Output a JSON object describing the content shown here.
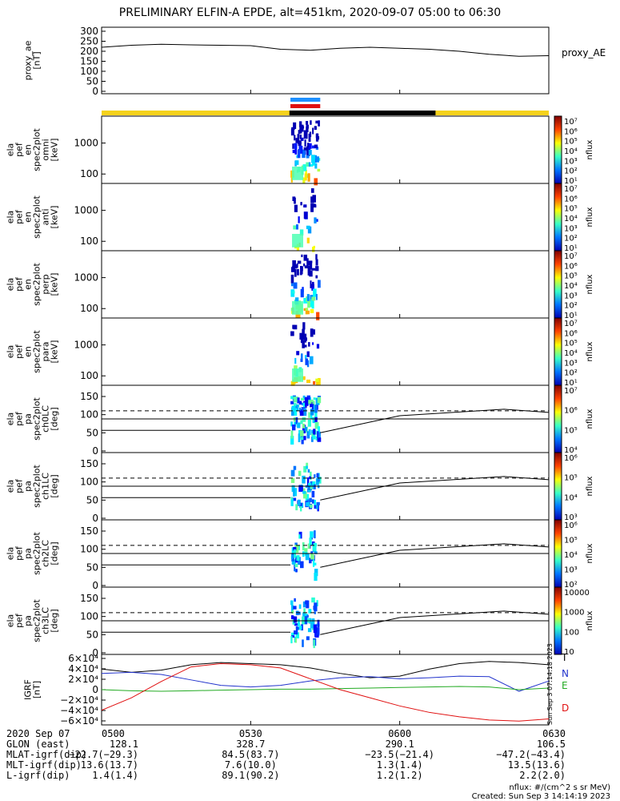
{
  "title": "PRELIMINARY ELFIN-A EPDE, alt=451km, 2020-09-07 05:00 to 06:30",
  "x_ticks": [
    "0500",
    "0530",
    "0600",
    "0630"
  ],
  "panels": [
    {
      "id": "proxy_ae",
      "ylabel": [
        "proxy_ae",
        "[nT]"
      ],
      "yticks": [
        "300",
        "250",
        "200",
        "150",
        "100",
        "50",
        "0"
      ],
      "right_label": "proxy_AE"
    },
    {
      "id": "omni",
      "ylabel": [
        "ela",
        "pef",
        "en",
        "spec2plot",
        "omni",
        "[keV]"
      ],
      "yticks": [
        "1000",
        "100"
      ],
      "cb_label": "nflux"
    },
    {
      "id": "anti",
      "ylabel": [
        "ela",
        "pef",
        "en",
        "spec2plot",
        "anti",
        "[keV]"
      ],
      "yticks": [
        "1000",
        "100"
      ],
      "cb_label": "nflux"
    },
    {
      "id": "perp",
      "ylabel": [
        "ela",
        "pef",
        "en",
        "spec2plot",
        "perp",
        "[keV]"
      ],
      "yticks": [
        "1000",
        "100"
      ],
      "cb_label": "nflux"
    },
    {
      "id": "para",
      "ylabel": [
        "ela",
        "pef",
        "en",
        "spec2plot",
        "para",
        "[keV]"
      ],
      "yticks": [
        "1000",
        "100"
      ],
      "cb_label": "nflux"
    },
    {
      "id": "ch0LC",
      "ylabel": [
        "ela",
        "pef",
        "pa",
        "spec2plot",
        "ch0LC",
        "[deg]"
      ],
      "yticks": [
        "150",
        "100",
        "50",
        "0"
      ],
      "cb_label": "nflux"
    },
    {
      "id": "ch1LC",
      "ylabel": [
        "ela",
        "pef",
        "pa",
        "spec2plot",
        "ch1LC",
        "[deg]"
      ],
      "yticks": [
        "150",
        "100",
        "50",
        "0"
      ],
      "cb_label": "nflux"
    },
    {
      "id": "ch2LC",
      "ylabel": [
        "ela",
        "pef",
        "pa",
        "spec2plot",
        "ch2LC",
        "[deg]"
      ],
      "yticks": [
        "150",
        "100",
        "50",
        "0"
      ],
      "cb_label": "nflux"
    },
    {
      "id": "ch3LC",
      "ylabel": [
        "ela",
        "pef",
        "pa",
        "spec2plot",
        "ch3LC",
        "[deg]"
      ],
      "yticks": [
        "150",
        "100",
        "50",
        "0"
      ],
      "cb_label": "nflux"
    },
    {
      "id": "igrf",
      "ylabel": [
        "IGRF",
        "[nT]"
      ],
      "yticks": [
        "6×10⁴",
        "4×10⁴",
        "2×10⁴",
        "0",
        "−2×10⁴",
        "−4×10⁴",
        "−6×10⁴"
      ],
      "legend": [
        "T",
        "N",
        "E",
        "D"
      ]
    }
  ],
  "colorbars": [
    [
      "10⁷",
      "10⁶",
      "10⁵",
      "10⁴",
      "10³",
      "10²",
      "10¹"
    ],
    [
      "10⁷",
      "10⁶",
      "10⁵",
      "10⁴",
      "10³",
      "10²",
      "10¹"
    ],
    [
      "10⁷",
      "10⁶",
      "10⁵",
      "10⁴",
      "10³",
      "10²",
      "10¹"
    ],
    [
      "10⁷",
      "10⁶",
      "10⁵",
      "10⁴",
      "10³",
      "10²",
      "10¹"
    ],
    [
      "10⁷",
      "10⁶",
      "10⁵",
      "10⁴"
    ],
    [
      "10⁶",
      "10⁵",
      "10⁴",
      "10³"
    ],
    [
      "10⁶",
      "10⁵",
      "10⁴",
      "10³",
      "10²"
    ],
    [
      "10000",
      "1000",
      "100",
      "10"
    ]
  ],
  "ephemeris": {
    "date": "2020 Sep 07",
    "rows": [
      {
        "label": "GLON (east)",
        "values": [
          "128.1",
          "328.7",
          "290.1",
          "106.5"
        ]
      },
      {
        "label": "MLAT-igrf(dip)",
        "values": [
          "−22.7(−29.3)",
          "84.5(83.7)",
          "−23.5(−21.4)",
          "−47.2(−43.4)"
        ]
      },
      {
        "label": "MLT-igrf(dip)",
        "values": [
          "13.6(13.7)",
          "7.6(10.0)",
          "1.3(1.4)",
          "13.5(13.6)"
        ]
      },
      {
        "label": "L-igrf(dip)",
        "values": [
          "1.4(1.4)",
          "89.1(90.2)",
          "1.2(1.2)",
          "2.2(2.0)"
        ]
      }
    ]
  },
  "footer": {
    "units": "nflux: #/(cm^2 s sr MeV)",
    "created": "Created: Sun Sep  3 14:14:19 2023"
  },
  "side_stamp": "Sun Sep  3 07:14:18 2023",
  "colors": {
    "yellow": "#f5d21c",
    "blue": "#1e90ff",
    "red": "#e01010",
    "black": "#000000",
    "green": "#22aa22"
  },
  "chart_data": {
    "type": "spectrogram",
    "time_range": [
      "05:00",
      "06:30"
    ],
    "proxy_ae": {
      "t_hours": [
        5.0,
        5.1,
        5.2,
        5.3,
        5.4,
        5.5,
        5.6,
        5.7,
        5.8,
        5.9,
        6.0,
        6.1,
        6.2,
        6.3,
        6.4,
        6.5
      ],
      "values": [
        220,
        230,
        235,
        232,
        230,
        228,
        210,
        205,
        215,
        220,
        215,
        210,
        200,
        185,
        175,
        178
      ]
    },
    "energy_axis": {
      "units": "keV",
      "log": true,
      "range": [
        60,
        7000
      ]
    },
    "pitch_angle_axis": {
      "units": "deg",
      "range": [
        0,
        180
      ]
    },
    "igrf": {
      "t_hours": [
        5.0,
        5.1,
        5.2,
        5.3,
        5.4,
        5.5,
        5.6,
        5.7,
        5.8,
        5.9,
        6.0,
        6.1,
        6.2,
        6.3,
        6.4,
        6.5
      ],
      "T": [
        38000,
        32000,
        36000,
        46000,
        50000,
        48000,
        46000,
        40000,
        30000,
        22000,
        25000,
        38000,
        48000,
        52000,
        50000,
        46000
      ],
      "N": [
        30000,
        32000,
        28000,
        18000,
        8000,
        5000,
        8000,
        16000,
        22000,
        24000,
        20000,
        22000,
        25000,
        24000,
        -3000,
        16000
      ],
      "E": [
        0,
        -2000,
        -3000,
        -2000,
        -1000,
        0,
        1000,
        1000,
        2000,
        3000,
        4000,
        5000,
        6000,
        5000,
        0,
        3000
      ],
      "D": [
        -38000,
        -15000,
        15000,
        42000,
        48000,
        46000,
        40000,
        20000,
        0,
        -15000,
        -30000,
        -42000,
        -50000,
        -56000,
        -58000,
        -54000
      ],
      "ylim": [
        -65000,
        65000
      ]
    },
    "burst_window": [
      "05:38",
      "05:44"
    ]
  }
}
